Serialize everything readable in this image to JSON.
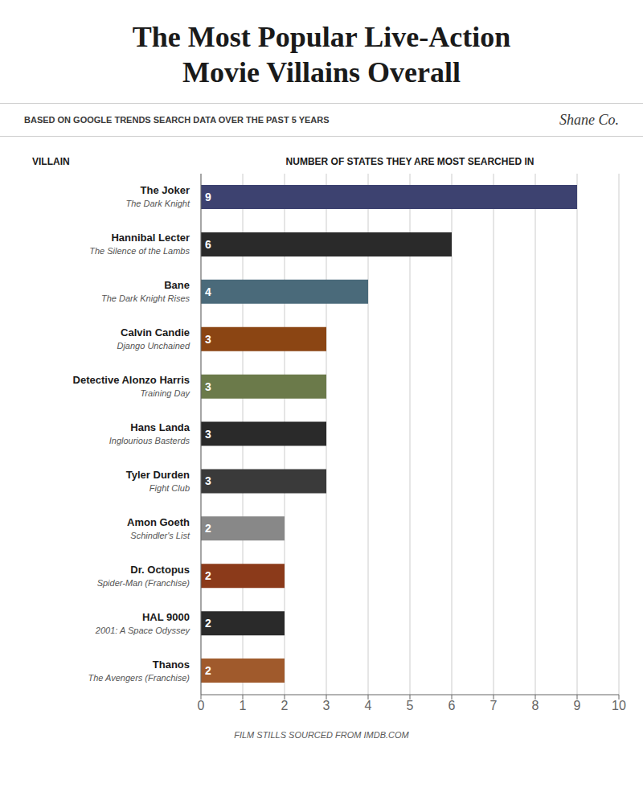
{
  "chart_data": {
    "type": "bar",
    "orientation": "horizontal",
    "title": [
      "The Most Popular Live-Action",
      "Movie Villains Overall"
    ],
    "subtitle": "BASED ON GOOGLE TRENDS SEARCH DATA OVER THE PAST 5 YEARS",
    "annotations": [
      "Shane Co.",
      "FILM STILLS SOURCED FROM IMDB.COM"
    ],
    "xlabel": "NUMBER OF STATES THEY ARE MOST SEARCHED IN",
    "ylabel": "VILLAIN",
    "categories": [
      "The Joker",
      "Hannibal Lecter",
      "Bane",
      "Calvin Candie",
      "Detective Alonzo Harris",
      "Hans Landa",
      "Tyler Durden",
      "Amon Goeth",
      "Dr. Octopus",
      "HAL 9000",
      "Thanos"
    ],
    "movies": [
      "The Dark Knight",
      "The Silence of the Lambs",
      "The Dark Knight Rises",
      "Django Unchained",
      "Training Day",
      "Inglourious Basterds",
      "Fight Club",
      "Schindler's List",
      "Spider-Man (Franchise)",
      "2001: A Space Odyssey",
      "The Avengers (Franchise)"
    ],
    "values": [
      9,
      6,
      4,
      3,
      3,
      3,
      3,
      2,
      2,
      2,
      2
    ],
    "colors": [
      "#3d4270",
      "#2a2a2a",
      "#4a6a7a",
      "#8b4513",
      "#6b7a4a",
      "#2a2a2a",
      "#3a3a3a",
      "#888888",
      "#8b3a1a",
      "#2a2a2a",
      "#a05a2c"
    ],
    "xlim": [
      0,
      10
    ],
    "xticks": [
      0,
      1,
      2,
      3,
      4,
      5,
      6,
      7,
      8,
      9,
      10
    ],
    "grid": true,
    "data_labels": true
  }
}
